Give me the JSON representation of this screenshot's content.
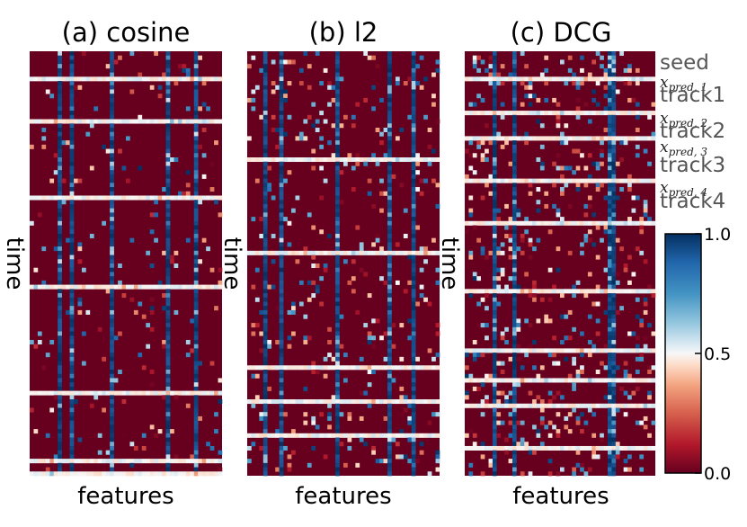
{
  "chart_data": {
    "type": "heatmap",
    "colormap": "RdBu",
    "value_range": [
      0.0,
      1.0
    ],
    "colorbar": {
      "ticks": [
        {
          "value": 1.0,
          "label": "1.0"
        },
        {
          "value": 0.5,
          "label": "0.5"
        },
        {
          "value": 0.0,
          "label": "0.0"
        }
      ]
    },
    "grid": {
      "n_features": 48,
      "n_time": 100
    },
    "panels": [
      {
        "title": "(a) cosine",
        "xlabel": "features",
        "ylabel": "time",
        "blue_feature_columns": [
          7,
          10,
          20,
          34,
          41
        ],
        "activity": "sparse",
        "highlight_time_rows": [
          6,
          16,
          34,
          55,
          80,
          96,
          99
        ]
      },
      {
        "title": "(b) l2",
        "xlabel": "features",
        "ylabel": "time",
        "blue_feature_columns": [
          4,
          8,
          22,
          35,
          41
        ],
        "activity": "medium",
        "highlight_time_rows": [
          25,
          47,
          74,
          82,
          90
        ]
      },
      {
        "title": "(c) DCG",
        "xlabel": "features",
        "ylabel": "time",
        "blue_feature_columns": [
          7,
          12,
          36,
          37
        ],
        "activity": "dense",
        "highlight_time_rows": [
          6,
          14,
          20,
          30,
          40,
          56,
          70,
          77,
          83,
          93
        ]
      }
    ],
    "segments": [
      {
        "name": "seed",
        "kind": "track"
      },
      {
        "name": "x",
        "sub": "pred, 1",
        "kind": "prediction"
      },
      {
        "name": "track1",
        "kind": "track"
      },
      {
        "name": "x",
        "sub": "pred, 2",
        "kind": "prediction"
      },
      {
        "name": "track2",
        "kind": "track"
      },
      {
        "name": "x",
        "sub": "pred, 3",
        "kind": "prediction"
      },
      {
        "name": "track3",
        "kind": "track"
      },
      {
        "name": "x",
        "sub": "pred, 4",
        "kind": "prediction"
      },
      {
        "name": "track4",
        "kind": "track"
      }
    ]
  },
  "colors": {
    "low": "#67001f",
    "mid": "#f7f7f7",
    "high": "#053061",
    "seg_label": "#555555"
  }
}
